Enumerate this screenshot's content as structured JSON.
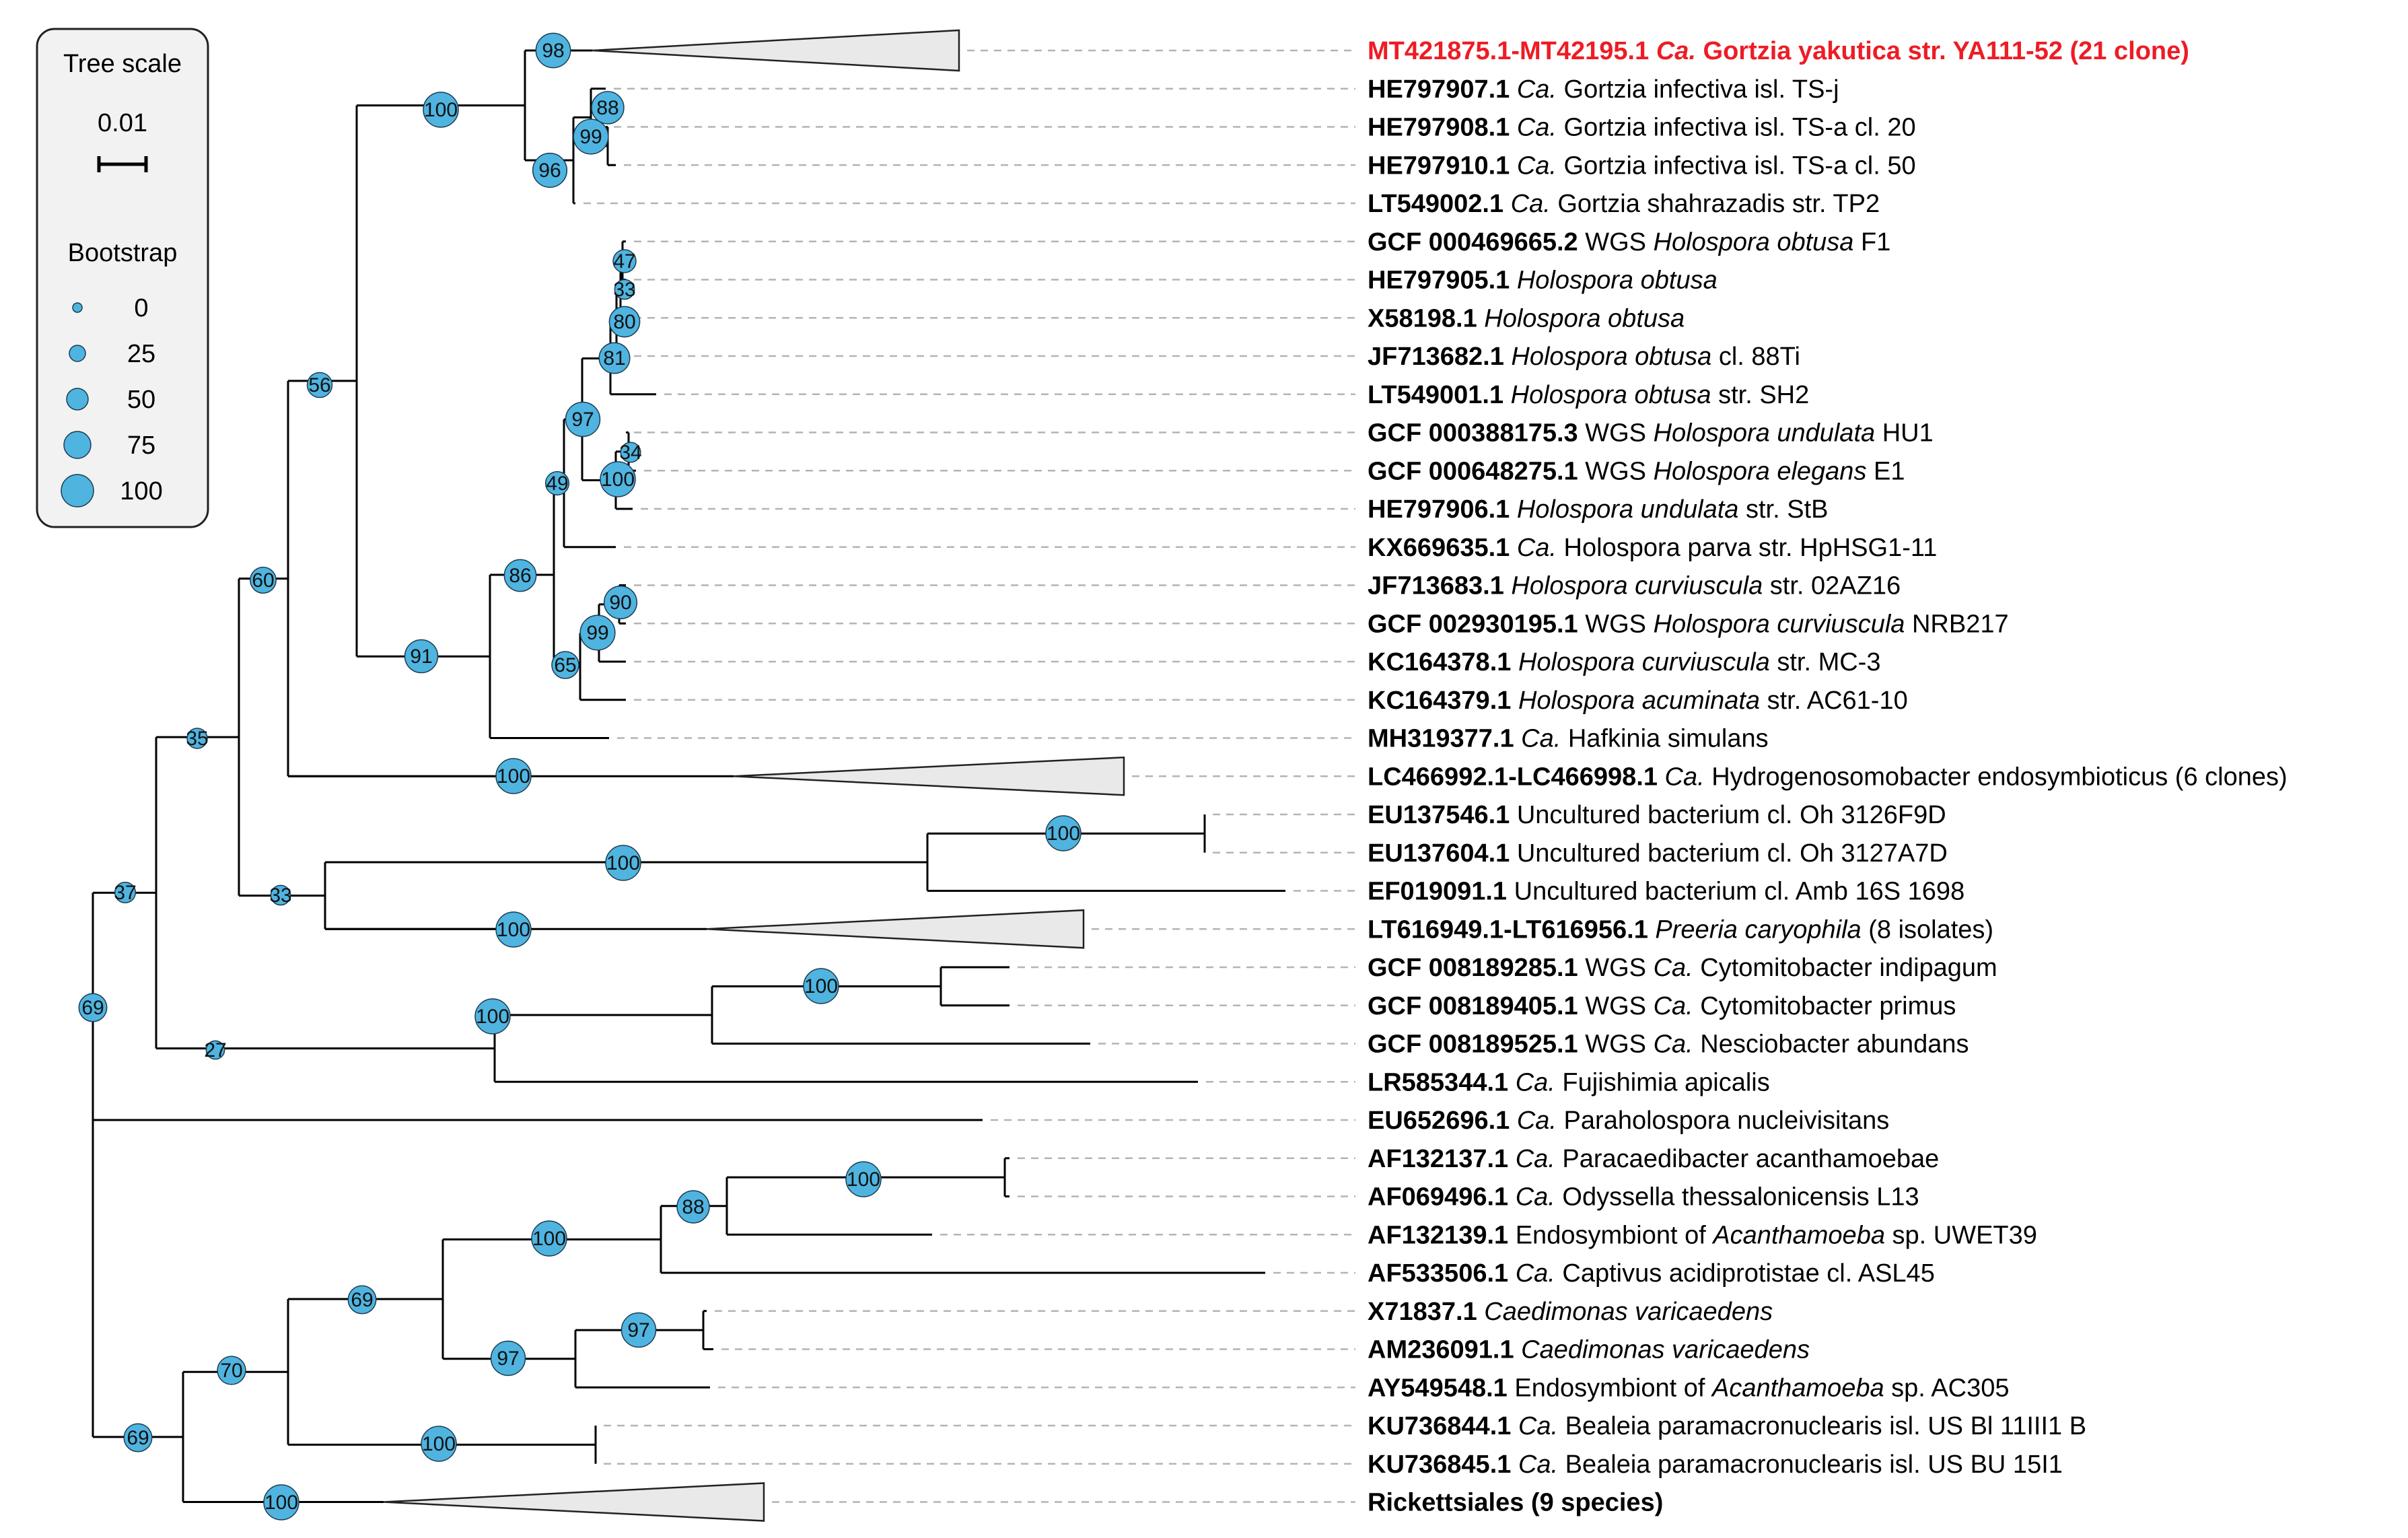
{
  "legend": {
    "tree_scale_title": "Tree scale",
    "scale_value": "0.01",
    "bootstrap_title": "Bootstrap",
    "bootstrap_levels": [
      "0",
      "25",
      "50",
      "75",
      "100"
    ]
  },
  "colors": {
    "node_fill": "#4fb4e0",
    "highlight": "#ee1c24",
    "collapsed_fill": "#e9e9e9",
    "guide_line": "#b4b4b4"
  },
  "taxa": [
    {
      "acc": "MT421875.1-MT42195.1",
      "parts": [
        {
          "t": " "
        },
        {
          "t": "Ca.",
          "i": true
        },
        {
          "t": " Gortzia yakutica str. YA111-52 (21 clone)"
        }
      ],
      "highlight": true
    },
    {
      "acc": "HE797907.1",
      "parts": [
        {
          "t": " "
        },
        {
          "t": "Ca.",
          "i": true
        },
        {
          "t": " Gortzia infectiva isl. TS-j"
        }
      ]
    },
    {
      "acc": "HE797908.1",
      "parts": [
        {
          "t": " "
        },
        {
          "t": "Ca.",
          "i": true
        },
        {
          "t": " Gortzia infectiva isl. TS-a cl. 20"
        }
      ]
    },
    {
      "acc": "HE797910.1",
      "parts": [
        {
          "t": " "
        },
        {
          "t": "Ca.",
          "i": true
        },
        {
          "t": " Gortzia infectiva isl. TS-a cl. 50"
        }
      ]
    },
    {
      "acc": "LT549002.1",
      "parts": [
        {
          "t": " "
        },
        {
          "t": "Ca.",
          "i": true
        },
        {
          "t": " Gortzia shahrazadis str. TP2"
        }
      ]
    },
    {
      "acc": "GCF 000469665.2",
      "parts": [
        {
          "t": " WGS "
        },
        {
          "t": "Holospora obtusa",
          "i": true
        },
        {
          "t": " F1"
        }
      ]
    },
    {
      "acc": "HE797905.1",
      "parts": [
        {
          "t": " "
        },
        {
          "t": "Holospora obtusa",
          "i": true
        }
      ]
    },
    {
      "acc": "X58198.1",
      "parts": [
        {
          "t": " "
        },
        {
          "t": "Holospora obtusa",
          "i": true
        }
      ]
    },
    {
      "acc": "JF713682.1",
      "parts": [
        {
          "t": " "
        },
        {
          "t": "Holospora obtusa",
          "i": true
        },
        {
          "t": " cl. 88Ti"
        }
      ]
    },
    {
      "acc": "LT549001.1",
      "parts": [
        {
          "t": " "
        },
        {
          "t": "Holospora obtusa",
          "i": true
        },
        {
          "t": " str. SH2"
        }
      ]
    },
    {
      "acc": "GCF 000388175.3",
      "parts": [
        {
          "t": " WGS "
        },
        {
          "t": "Holospora undulata",
          "i": true
        },
        {
          "t": " HU1"
        }
      ]
    },
    {
      "acc": "GCF 000648275.1",
      "parts": [
        {
          "t": " WGS "
        },
        {
          "t": "Holospora elegans",
          "i": true
        },
        {
          "t": " E1"
        }
      ]
    },
    {
      "acc": "HE797906.1",
      "parts": [
        {
          "t": " "
        },
        {
          "t": "Holospora undulata",
          "i": true
        },
        {
          "t": " str. StB"
        }
      ]
    },
    {
      "acc": "KX669635.1",
      "parts": [
        {
          "t": " "
        },
        {
          "t": "Ca.",
          "i": true
        },
        {
          "t": " Holospora parva str. HpHSG1-11"
        }
      ]
    },
    {
      "acc": "JF713683.1",
      "parts": [
        {
          "t": " "
        },
        {
          "t": "Holospora curviuscula",
          "i": true
        },
        {
          "t": " str. 02AZ16"
        }
      ]
    },
    {
      "acc": "GCF 002930195.1",
      "parts": [
        {
          "t": " WGS "
        },
        {
          "t": "Holospora curviuscula",
          "i": true
        },
        {
          "t": " NRB217"
        }
      ]
    },
    {
      "acc": "KC164378.1",
      "parts": [
        {
          "t": " "
        },
        {
          "t": "Holospora curviuscula",
          "i": true
        },
        {
          "t": " str. MC-3"
        }
      ]
    },
    {
      "acc": "KC164379.1",
      "parts": [
        {
          "t": " "
        },
        {
          "t": "Holospora acuminata",
          "i": true
        },
        {
          "t": " str. AC61-10"
        }
      ]
    },
    {
      "acc": "MH319377.1",
      "parts": [
        {
          "t": " "
        },
        {
          "t": "Ca.",
          "i": true
        },
        {
          "t": " Hafkinia simulans"
        }
      ]
    },
    {
      "acc": "LC466992.1-LC466998.1",
      "parts": [
        {
          "t": " "
        },
        {
          "t": "Ca.",
          "i": true
        },
        {
          "t": " Hydrogenosomobacter endosymbioticus (6 clones)"
        }
      ]
    },
    {
      "acc": "EU137546.1",
      "parts": [
        {
          "t": " Uncultured bacterium cl. Oh 3126F9D"
        }
      ]
    },
    {
      "acc": "EU137604.1",
      "parts": [
        {
          "t": " Uncultured bacterium cl. Oh 3127A7D"
        }
      ]
    },
    {
      "acc": "EF019091.1",
      "parts": [
        {
          "t": " Uncultured bacterium cl. Amb 16S 1698"
        }
      ]
    },
    {
      "acc": "LT616949.1-LT616956.1",
      "parts": [
        {
          "t": " "
        },
        {
          "t": "Preeria caryophila",
          "i": true
        },
        {
          "t": " (8 isolates)"
        }
      ]
    },
    {
      "acc": "GCF 008189285.1",
      "parts": [
        {
          "t": " WGS "
        },
        {
          "t": "Ca.",
          "i": true
        },
        {
          "t": " Cytomitobacter indipagum"
        }
      ]
    },
    {
      "acc": "GCF 008189405.1",
      "parts": [
        {
          "t": " WGS "
        },
        {
          "t": "Ca.",
          "i": true
        },
        {
          "t": " Cytomitobacter primus"
        }
      ]
    },
    {
      "acc": "GCF 008189525.1",
      "parts": [
        {
          "t": " WGS "
        },
        {
          "t": "Ca.",
          "i": true
        },
        {
          "t": " Nesciobacter abundans"
        }
      ]
    },
    {
      "acc": "LR585344.1",
      "parts": [
        {
          "t": " "
        },
        {
          "t": "Ca.",
          "i": true
        },
        {
          "t": " Fujishimia apicalis"
        }
      ]
    },
    {
      "acc": "EU652696.1",
      "parts": [
        {
          "t": " "
        },
        {
          "t": "Ca.",
          "i": true
        },
        {
          "t": " Paraholospora nucleivisitans"
        }
      ]
    },
    {
      "acc": "AF132137.1",
      "parts": [
        {
          "t": " "
        },
        {
          "t": "Ca.",
          "i": true
        },
        {
          "t": " Paracaedibacter acanthamoebae"
        }
      ]
    },
    {
      "acc": "AF069496.1",
      "parts": [
        {
          "t": " "
        },
        {
          "t": "Ca.",
          "i": true
        },
        {
          "t": " Odyssella thessalonicensis L13"
        }
      ]
    },
    {
      "acc": "AF132139.1",
      "parts": [
        {
          "t": " Endosymbiont of "
        },
        {
          "t": "Acanthamoeba",
          "i": true
        },
        {
          "t": " sp. UWET39"
        }
      ]
    },
    {
      "acc": "AF533506.1",
      "parts": [
        {
          "t": " "
        },
        {
          "t": "Ca.",
          "i": true
        },
        {
          "t": " Captivus acidiprotistae cl. ASL45"
        }
      ]
    },
    {
      "acc": "X71837.1",
      "parts": [
        {
          "t": " "
        },
        {
          "t": "Caedimonas varicaedens",
          "i": true
        }
      ]
    },
    {
      "acc": "AM236091.1",
      "parts": [
        {
          "t": " "
        },
        {
          "t": "Caedimonas varicaedens",
          "i": true
        }
      ]
    },
    {
      "acc": "AY549548.1",
      "parts": [
        {
          "t": " Endosymbiont of "
        },
        {
          "t": "Acanthamoeba",
          "i": true
        },
        {
          "t": " sp. AC305"
        }
      ]
    },
    {
      "acc": "KU736844.1",
      "parts": [
        {
          "t": " "
        },
        {
          "t": "Ca.",
          "i": true
        },
        {
          "t": " Bealeia paramacronuclearis isl. US Bl 11III1 B"
        }
      ]
    },
    {
      "acc": "KU736845.1",
      "parts": [
        {
          "t": " "
        },
        {
          "t": "Ca.",
          "i": true
        },
        {
          "t": " Bealeia paramacronuclearis isl. US BU 15I1"
        }
      ]
    },
    {
      "acc": "Rickettsiales (9 species)",
      "parts": []
    }
  ],
  "bootstrap": [
    {
      "node": "gortzia-yakutica-clade",
      "value": 98
    },
    {
      "node": "gortzia-group",
      "value": 100
    },
    {
      "node": "gortzia-infectiva-ts-a",
      "value": 88
    },
    {
      "node": "gortzia-infectiva",
      "value": 99
    },
    {
      "node": "gortzia-rest",
      "value": 96
    },
    {
      "node": "holospora-obtusa-f1",
      "value": 47
    },
    {
      "node": "holospora-obtusa-he",
      "value": 33
    },
    {
      "node": "holospora-obtusa-x",
      "value": 80
    },
    {
      "node": "holospora-obtusa-group",
      "value": 81
    },
    {
      "node": "holospora-undulata-elegans",
      "value": 34
    },
    {
      "node": "holospora-undulata-group",
      "value": 100
    },
    {
      "node": "holospora-core",
      "value": 97
    },
    {
      "node": "holospora-with-parva",
      "value": 49
    },
    {
      "node": "holospora-curviuscula-inner",
      "value": 90
    },
    {
      "node": "holospora-curviuscula",
      "value": 99
    },
    {
      "node": "holospora-curv-acum",
      "value": 65
    },
    {
      "node": "holospora-all",
      "value": 86
    },
    {
      "node": "holospora-hafkinia",
      "value": 91
    },
    {
      "node": "holosporaceae",
      "value": 56
    },
    {
      "node": "hydrogenosomobacter",
      "value": 100
    },
    {
      "node": "holosporaceae-plus",
      "value": 60
    },
    {
      "node": "uncultured-oh",
      "value": 100
    },
    {
      "node": "uncultured-clade",
      "value": 100
    },
    {
      "node": "preeria",
      "value": 100
    },
    {
      "node": "uncultured-preeria",
      "value": 33
    },
    {
      "node": "group-35",
      "value": 35
    },
    {
      "node": "cytomitobacter",
      "value": 100
    },
    {
      "node": "cyto-nescio",
      "value": 100
    },
    {
      "node": "fujishimia-group",
      "value": 27
    },
    {
      "node": "group-37",
      "value": 37
    },
    {
      "node": "paracaedibacter-odyssella",
      "value": 100
    },
    {
      "node": "paracaedibacter-group",
      "value": 88
    },
    {
      "node": "paracaedibacteraceae",
      "value": 100
    },
    {
      "node": "caedimonas",
      "value": 97
    },
    {
      "node": "caedimonas-group",
      "value": 97
    },
    {
      "node": "group-69-inner",
      "value": 69
    },
    {
      "node": "bealeia",
      "value": 100
    },
    {
      "node": "group-70",
      "value": 70
    },
    {
      "node": "rickettsiales",
      "value": 100
    },
    {
      "node": "group-69-lower",
      "value": 69
    },
    {
      "node": "root",
      "value": 69
    }
  ]
}
